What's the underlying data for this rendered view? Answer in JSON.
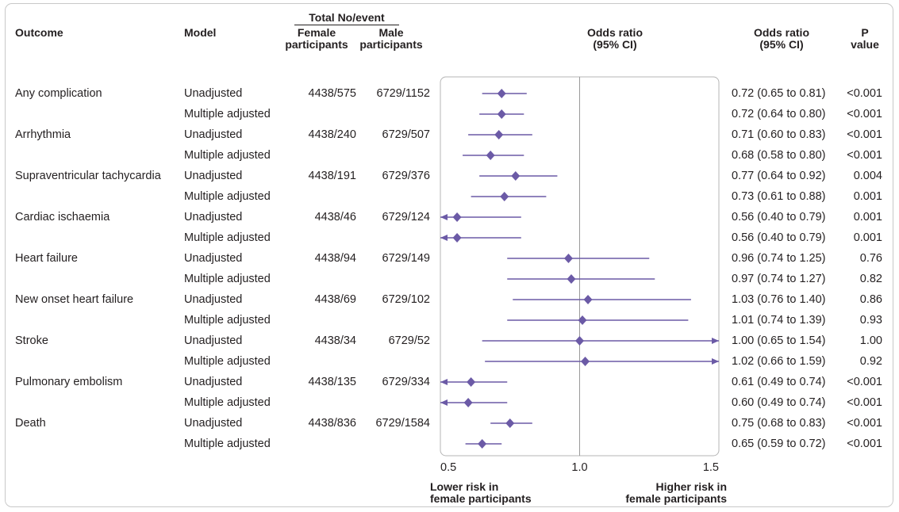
{
  "headers": {
    "outcome": "Outcome",
    "model": "Model",
    "total": "Total No/event",
    "female": [
      "Female",
      "participants"
    ],
    "male": [
      "Male",
      "participants"
    ],
    "odds_plot": [
      "Odds ratio",
      "(95% CI)"
    ],
    "odds_col": [
      "Odds ratio",
      "(95% CI)"
    ],
    "p": [
      "P",
      "value"
    ]
  },
  "outcomes": [
    {
      "name": "Any complication",
      "female": "4438/575",
      "male": "6729/1152",
      "models": [
        {
          "model": "Unadjusted",
          "text": "0.72 (0.65 to 0.81)",
          "p": "<0.001"
        },
        {
          "model": "Multiple adjusted",
          "text": "0.72 (0.64 to 0.80)",
          "p": "<0.001"
        }
      ]
    },
    {
      "name": "Arrhythmia",
      "female": "4438/240",
      "male": "6729/507",
      "models": [
        {
          "model": "Unadjusted",
          "text": "0.71 (0.60 to 0.83)",
          "p": "<0.001"
        },
        {
          "model": "Multiple adjusted",
          "text": "0.68 (0.58 to 0.80)",
          "p": "<0.001"
        }
      ]
    },
    {
      "name": "Supraventricular tachycardia",
      "female": "4438/191",
      "male": "6729/376",
      "models": [
        {
          "model": "Unadjusted",
          "text": "0.77 (0.64 to 0.92)",
          "p": "0.004"
        },
        {
          "model": "Multiple adjusted",
          "text": "0.73 (0.61 to 0.88)",
          "p": "0.001"
        }
      ]
    },
    {
      "name": "Cardiac ischaemia",
      "female": "4438/46",
      "male": "6729/124",
      "models": [
        {
          "model": "Unadjusted",
          "text": "0.56 (0.40 to 0.79)",
          "p": "0.001"
        },
        {
          "model": "Multiple adjusted",
          "text": "0.56 (0.40 to 0.79)",
          "p": "0.001"
        }
      ]
    },
    {
      "name": "Heart failure",
      "female": "4438/94",
      "male": "6729/149",
      "models": [
        {
          "model": "Unadjusted",
          "text": "0.96 (0.74 to 1.25)",
          "p": "0.76"
        },
        {
          "model": "Multiple adjusted",
          "text": "0.97 (0.74 to 1.27)",
          "p": "0.82"
        }
      ]
    },
    {
      "name": "New onset heart failure",
      "female": "4438/69",
      "male": "6729/102",
      "models": [
        {
          "model": "Unadjusted",
          "text": "1.03 (0.76 to 1.40)",
          "p": "0.86"
        },
        {
          "model": "Multiple adjusted",
          "text": "1.01 (0.74 to 1.39)",
          "p": "0.93"
        }
      ]
    },
    {
      "name": "Stroke",
      "female": "4438/34",
      "male": "6729/52",
      "models": [
        {
          "model": "Unadjusted",
          "text": "1.00 (0.65 to 1.54)",
          "p": "1.00"
        },
        {
          "model": "Multiple adjusted",
          "text": "1.02 (0.66 to 1.59)",
          "p": "0.92"
        }
      ]
    },
    {
      "name": "Pulmonary embolism",
      "female": "4438/135",
      "male": "6729/334",
      "models": [
        {
          "model": "Unadjusted",
          "text": "0.61 (0.49 to 0.74)",
          "p": "<0.001"
        },
        {
          "model": "Multiple adjusted",
          "text": "0.60 (0.49 to 0.74)",
          "p": "<0.001"
        }
      ]
    },
    {
      "name": "Death",
      "female": "4438/836",
      "male": "6729/1584",
      "models": [
        {
          "model": "Unadjusted",
          "text": "0.75 (0.68 to 0.83)",
          "p": "<0.001"
        },
        {
          "model": "Multiple adjusted",
          "text": "0.65 (0.59 to 0.72)",
          "p": "<0.001"
        }
      ]
    }
  ],
  "chart_data": {
    "type": "forest",
    "xlim": [
      0.5,
      1.5
    ],
    "reference_line": 1.0,
    "xticks": [
      "0.5",
      "1.0",
      "1.5"
    ],
    "footer_left": [
      "Lower risk in",
      "female participants"
    ],
    "footer_right": [
      "Higher risk in",
      "female participants"
    ],
    "marker_color": "#6b5aa6",
    "series": [
      {
        "or": 0.72,
        "lo": 0.65,
        "hi": 0.81
      },
      {
        "or": 0.72,
        "lo": 0.64,
        "hi": 0.8
      },
      {
        "or": 0.71,
        "lo": 0.6,
        "hi": 0.83
      },
      {
        "or": 0.68,
        "lo": 0.58,
        "hi": 0.8
      },
      {
        "or": 0.77,
        "lo": 0.64,
        "hi": 0.92
      },
      {
        "or": 0.73,
        "lo": 0.61,
        "hi": 0.88
      },
      {
        "or": 0.56,
        "lo": 0.4,
        "hi": 0.79
      },
      {
        "or": 0.56,
        "lo": 0.4,
        "hi": 0.79
      },
      {
        "or": 0.96,
        "lo": 0.74,
        "hi": 1.25
      },
      {
        "or": 0.97,
        "lo": 0.74,
        "hi": 1.27
      },
      {
        "or": 1.03,
        "lo": 0.76,
        "hi": 1.4
      },
      {
        "or": 1.01,
        "lo": 0.74,
        "hi": 1.39
      },
      {
        "or": 1.0,
        "lo": 0.65,
        "hi": 1.54
      },
      {
        "or": 1.02,
        "lo": 0.66,
        "hi": 1.59
      },
      {
        "or": 0.61,
        "lo": 0.49,
        "hi": 0.74
      },
      {
        "or": 0.6,
        "lo": 0.49,
        "hi": 0.74
      },
      {
        "or": 0.75,
        "lo": 0.68,
        "hi": 0.83
      },
      {
        "or": 0.65,
        "lo": 0.59,
        "hi": 0.72
      }
    ]
  }
}
